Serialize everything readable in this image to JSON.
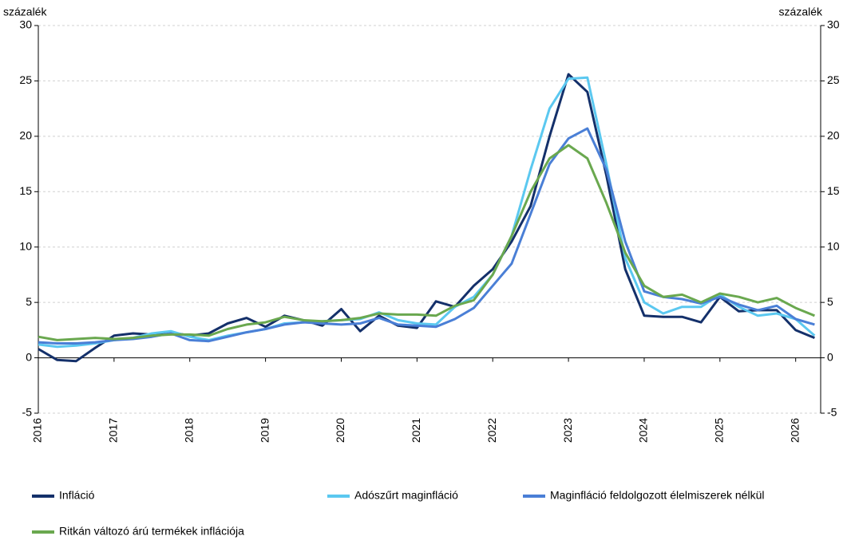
{
  "chart_data": {
    "type": "line",
    "y_label": "százalék",
    "y2_label": "százalék",
    "x": [
      2016,
      2016.25,
      2016.5,
      2016.75,
      2017,
      2017.25,
      2017.5,
      2017.75,
      2018,
      2018.25,
      2018.5,
      2018.75,
      2019,
      2019.25,
      2019.5,
      2019.75,
      2020,
      2020.25,
      2020.5,
      2020.75,
      2021,
      2021.25,
      2021.5,
      2021.75,
      2022,
      2022.25,
      2022.5,
      2022.75,
      2023,
      2023.25,
      2023.5,
      2023.75,
      2024,
      2024.25,
      2024.5,
      2024.75,
      2025,
      2025.25,
      2025.5,
      2025.75,
      2026,
      2026.25
    ],
    "series": [
      {
        "name": "Infláció",
        "color": "#14306a",
        "values": [
          0.8,
          -0.2,
          -0.3,
          0.9,
          2.0,
          2.2,
          2.1,
          2.3,
          2.0,
          2.2,
          3.1,
          3.6,
          2.8,
          3.8,
          3.4,
          2.9,
          4.4,
          2.4,
          3.8,
          2.9,
          2.7,
          5.1,
          4.6,
          6.5,
          8.0,
          10.5,
          13.7,
          20.0,
          25.6,
          24.0,
          16.5,
          8.0,
          3.8,
          3.7,
          3.7,
          3.2,
          5.5,
          4.2,
          4.3,
          4.3,
          2.5,
          1.8
        ]
      },
      {
        "name": "Adószűrt maginfláció",
        "color": "#5bc8f0",
        "values": [
          1.2,
          1.0,
          1.1,
          1.3,
          1.6,
          1.8,
          2.2,
          2.4,
          1.9,
          1.6,
          2.0,
          2.3,
          2.6,
          3.1,
          3.2,
          3.3,
          3.4,
          3.5,
          4.1,
          3.4,
          3.1,
          3.0,
          4.6,
          5.5,
          7.5,
          11.0,
          17.0,
          22.5,
          25.2,
          25.3,
          17.5,
          9.0,
          5.0,
          4.0,
          4.6,
          4.6,
          5.7,
          4.6,
          3.8,
          4.0,
          3.5,
          2.0
        ]
      },
      {
        "name": "Maginfláció feldolgozott élelmiszerek nélkül",
        "color": "#4a7fd6",
        "values": [
          1.4,
          1.3,
          1.3,
          1.4,
          1.6,
          1.7,
          1.9,
          2.2,
          1.6,
          1.5,
          1.9,
          2.3,
          2.6,
          3.0,
          3.2,
          3.1,
          3.0,
          3.1,
          3.6,
          3.0,
          2.9,
          2.8,
          3.5,
          4.5,
          6.5,
          8.5,
          13.0,
          17.5,
          19.8,
          20.7,
          17.0,
          10.5,
          6.0,
          5.5,
          5.3,
          4.9,
          5.5,
          4.8,
          4.3,
          4.7,
          3.5,
          3.0
        ]
      },
      {
        "name": "Ritkán változó árú termékek inflációja",
        "color": "#6aa84f",
        "values": [
          1.9,
          1.6,
          1.7,
          1.8,
          1.7,
          1.8,
          2.0,
          2.1,
          2.1,
          2.0,
          2.6,
          3.0,
          3.2,
          3.7,
          3.4,
          3.3,
          3.4,
          3.6,
          4.0,
          3.9,
          3.9,
          3.8,
          4.7,
          5.2,
          7.5,
          11.0,
          15.0,
          18.0,
          19.2,
          18.0,
          14.0,
          9.5,
          6.5,
          5.5,
          5.7,
          5.0,
          5.8,
          5.5,
          5.0,
          5.4,
          4.5,
          3.8
        ]
      }
    ],
    "xlim": [
      2016,
      2026.33
    ],
    "xticks": [
      2016,
      2017,
      2018,
      2019,
      2020,
      2021,
      2022,
      2023,
      2024,
      2025,
      2026
    ],
    "ylim": [
      -5,
      30
    ],
    "yticks": [
      -5,
      0,
      5,
      10,
      15,
      20,
      25,
      30
    ],
    "y2lim": [
      -5,
      30
    ],
    "y2ticks": [
      -5,
      0,
      5,
      10,
      15,
      20,
      25,
      30
    ],
    "grid": true
  }
}
